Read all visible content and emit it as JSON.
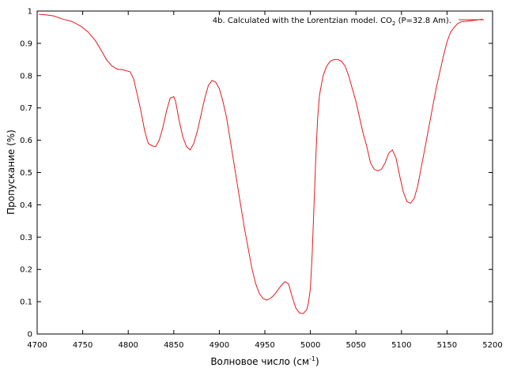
{
  "chart_data": {
    "type": "line",
    "xlabel": "Волновое число (см",
    "xlabel_sup": "-1",
    "xlabel_end": ")",
    "ylabel": "Пропускание (%)",
    "xlim": [
      4700,
      5200
    ],
    "ylim": [
      0,
      1
    ],
    "xticks": [
      4700,
      4750,
      4800,
      4850,
      4900,
      4950,
      5000,
      5050,
      5100,
      5150,
      5200
    ],
    "yticks": [
      0,
      0.1,
      0.2,
      0.3,
      0.4,
      0.5,
      0.6,
      0.7,
      0.8,
      0.9,
      1
    ],
    "grid": false,
    "legend_position": "top-right",
    "series": [
      {
        "name": "4b. Calculated with the Lorentzian model. CO",
        "name_sub": "2",
        "name_end": " (P=32.8 Am).",
        "color": "#e41a1c",
        "x": [
          4702,
          4710,
          4718,
          4728,
          4738,
          4748,
          4756,
          4764,
          4770,
          4776,
          4782,
          4788,
          4794,
          4798,
          4802,
          4806,
          4810,
          4814,
          4818,
          4822,
          4826,
          4830,
          4834,
          4838,
          4842,
          4846,
          4850,
          4852,
          4856,
          4860,
          4864,
          4868,
          4872,
          4876,
          4880,
          4884,
          4888,
          4892,
          4896,
          4900,
          4904,
          4908,
          4912,
          4916,
          4920,
          4924,
          4928,
          4932,
          4936,
          4940,
          4944,
          4948,
          4952,
          4956,
          4960,
          4964,
          4968,
          4972,
          4976,
          4980,
          4984,
          4988,
          4992,
          4996,
          4998,
          5000,
          5002,
          5004,
          5006,
          5008,
          5010,
          5014,
          5018,
          5022,
          5026,
          5030,
          5034,
          5038,
          5042,
          5046,
          5050,
          5054,
          5058,
          5062,
          5066,
          5070,
          5074,
          5078,
          5082,
          5086,
          5090,
          5094,
          5098,
          5102,
          5106,
          5110,
          5114,
          5118,
          5122,
          5126,
          5130,
          5134,
          5138,
          5142,
          5146,
          5150,
          5154,
          5158,
          5162,
          5166,
          5170,
          5176,
          5182,
          5189
        ],
        "y": [
          0.99,
          0.988,
          0.985,
          0.975,
          0.968,
          0.953,
          0.935,
          0.908,
          0.88,
          0.85,
          0.83,
          0.82,
          0.818,
          0.815,
          0.812,
          0.79,
          0.74,
          0.69,
          0.63,
          0.59,
          0.583,
          0.58,
          0.6,
          0.64,
          0.69,
          0.73,
          0.735,
          0.72,
          0.66,
          0.61,
          0.58,
          0.57,
          0.59,
          0.63,
          0.68,
          0.73,
          0.77,
          0.785,
          0.78,
          0.76,
          0.72,
          0.67,
          0.6,
          0.53,
          0.46,
          0.39,
          0.32,
          0.26,
          0.2,
          0.155,
          0.125,
          0.11,
          0.105,
          0.11,
          0.12,
          0.135,
          0.15,
          0.162,
          0.155,
          0.115,
          0.08,
          0.065,
          0.063,
          0.075,
          0.1,
          0.14,
          0.25,
          0.4,
          0.55,
          0.67,
          0.74,
          0.8,
          0.83,
          0.845,
          0.85,
          0.85,
          0.845,
          0.83,
          0.8,
          0.76,
          0.72,
          0.67,
          0.62,
          0.58,
          0.53,
          0.51,
          0.505,
          0.51,
          0.53,
          0.56,
          0.57,
          0.545,
          0.49,
          0.44,
          0.41,
          0.405,
          0.42,
          0.46,
          0.52,
          0.58,
          0.64,
          0.7,
          0.76,
          0.81,
          0.86,
          0.905,
          0.935,
          0.95,
          0.962,
          0.967,
          0.968,
          0.97,
          0.972,
          0.975
        ]
      }
    ]
  }
}
